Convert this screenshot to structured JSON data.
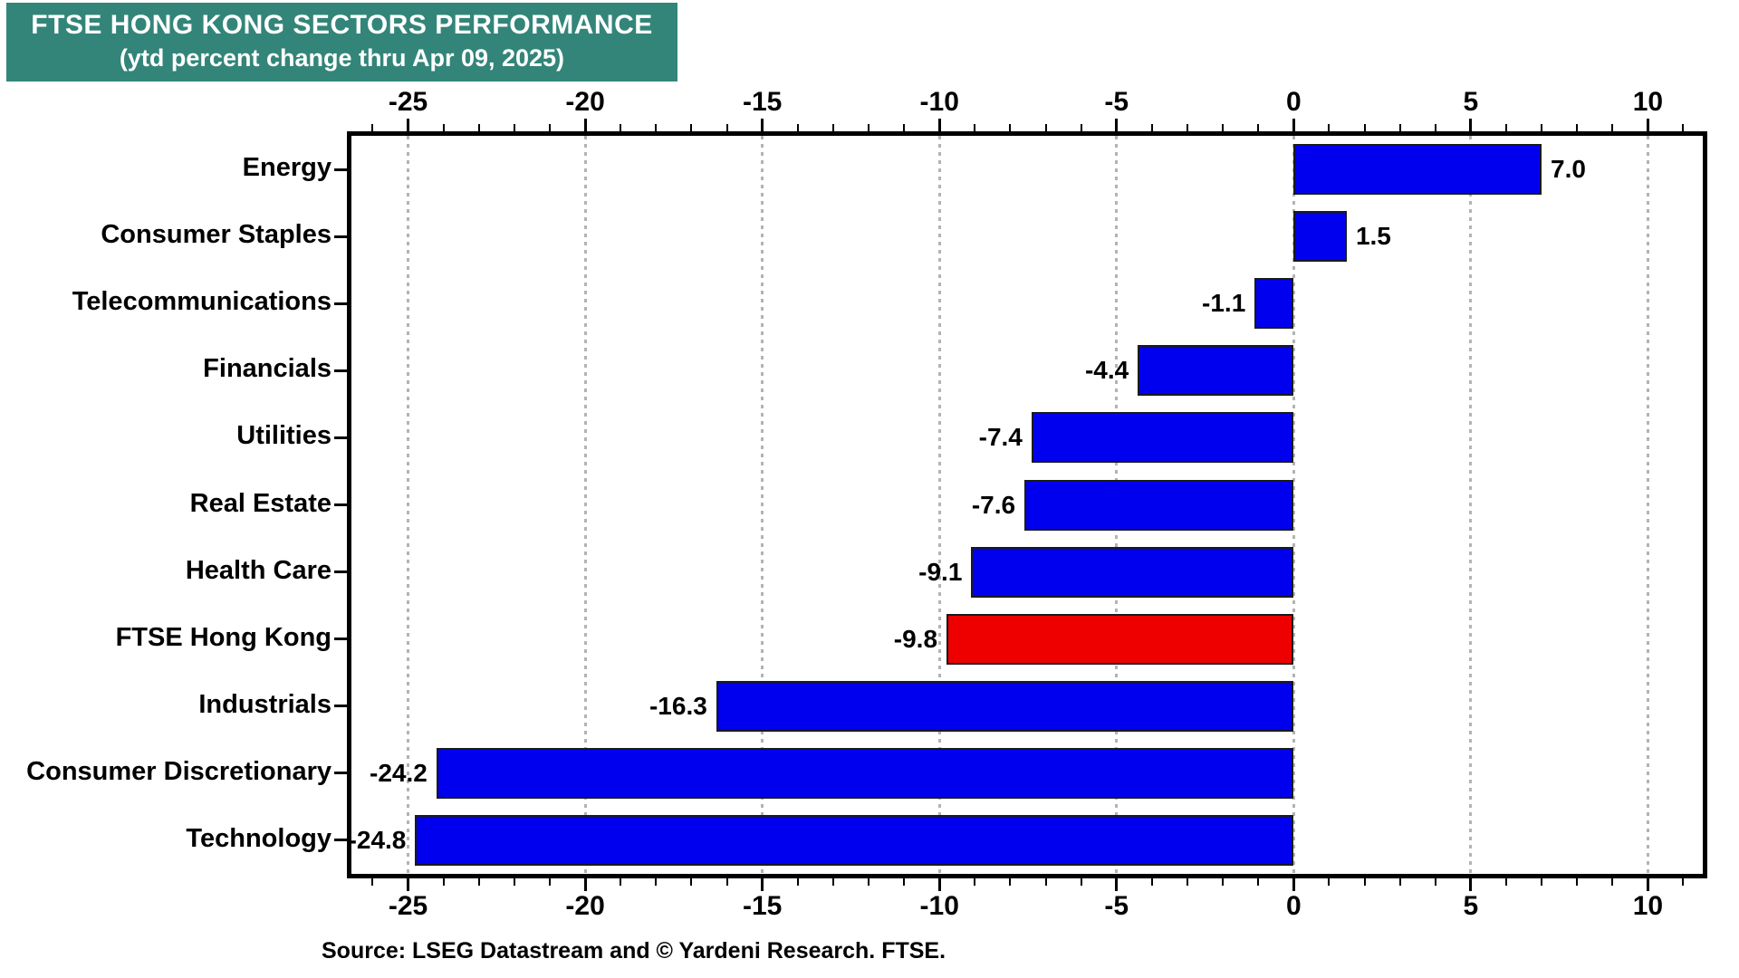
{
  "header": {
    "title": "FTSE HONG KONG SECTORS PERFORMANCE",
    "subtitle": "(ytd percent change thru Apr 09, 2025)",
    "bg_color": "#338579",
    "text_color": "#ffffff"
  },
  "source_note": "Source: LSEG Datastream and © Yardeni Research. FTSE.",
  "chart_data": {
    "type": "bar",
    "orientation": "horizontal",
    "title": "FTSE HONG KONG SECTORS PERFORMANCE",
    "subtitle": "(ytd percent change thru Apr 09, 2025)",
    "categories": [
      "Energy",
      "Consumer Staples",
      "Telecommunications",
      "Financials",
      "Utilities",
      "Real Estate",
      "Health Care",
      "FTSE Hong Kong",
      "Industrials",
      "Consumer Discretionary",
      "Technology"
    ],
    "values": [
      7.0,
      1.5,
      -1.1,
      -4.4,
      -7.4,
      -7.6,
      -9.1,
      -9.8,
      -16.3,
      -24.2,
      -24.8
    ],
    "value_labels": [
      "7.0",
      "1.5",
      "-1.1",
      "-4.4",
      "-7.4",
      "-7.6",
      "-9.1",
      "-9.8",
      "-16.3",
      "-24.2",
      "-24.8"
    ],
    "highlight_category": "FTSE Hong Kong",
    "highlight_index": 7,
    "bar_color": "#0000ee",
    "highlight_color": "#ee0000",
    "bar_border_color": "#1a1a1a",
    "gridline_color": "#b3b3b3",
    "xlim": [
      -26.6,
      11.55
    ],
    "xticks": [
      -25,
      -20,
      -15,
      -10,
      -5,
      0,
      5,
      10
    ],
    "minor_tick_step": 1,
    "grid": "vertical dotted lines at major ticks, mirrored top/bottom axes",
    "xlabel": "",
    "ylabel": ""
  }
}
